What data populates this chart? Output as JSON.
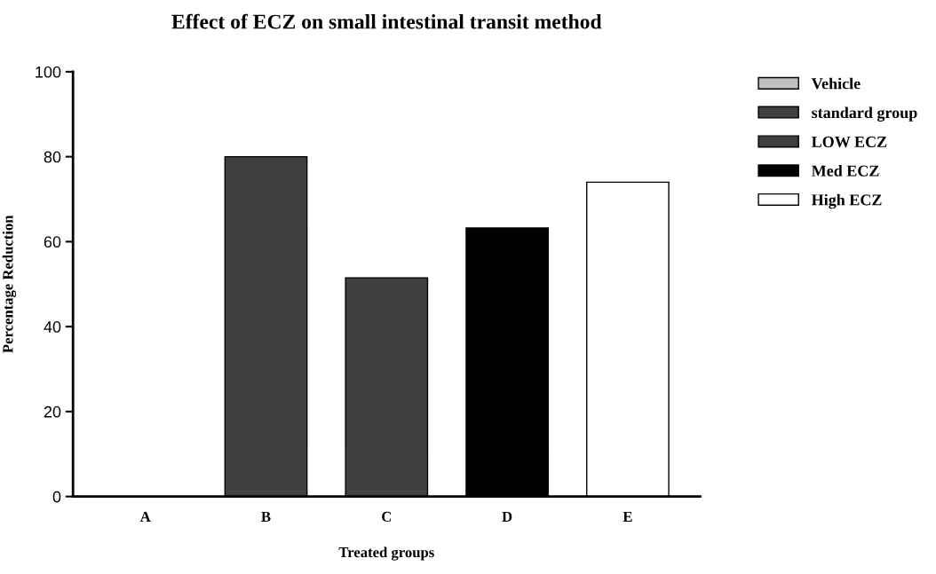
{
  "chart_data": {
    "type": "bar",
    "title": "Effect of ECZ on small intestinal transit method",
    "xlabel": "Treated groups",
    "ylabel": "Percentage Reduction",
    "categories": [
      "A",
      "B",
      "C",
      "D",
      "E"
    ],
    "series": [
      {
        "name": "Vehicle",
        "color": "#c0c0c0",
        "values": [
          0,
          null,
          null,
          null,
          null
        ]
      },
      {
        "name": "standard group",
        "color": "#404040",
        "values": [
          null,
          80,
          null,
          null,
          null
        ]
      },
      {
        "name": "LOW ECZ",
        "color": "#404040",
        "values": [
          null,
          null,
          51.5,
          null,
          null
        ]
      },
      {
        "name": "Med ECZ",
        "color": "#000000",
        "values": [
          null,
          null,
          null,
          63.2,
          null
        ]
      },
      {
        "name": "High ECZ",
        "color": "#ffffff",
        "values": [
          null,
          null,
          null,
          null,
          74
        ]
      }
    ],
    "ylim": [
      0,
      100
    ],
    "yticks": [
      0,
      20,
      40,
      60,
      80,
      100
    ],
    "grid": false,
    "legend": "top right"
  }
}
